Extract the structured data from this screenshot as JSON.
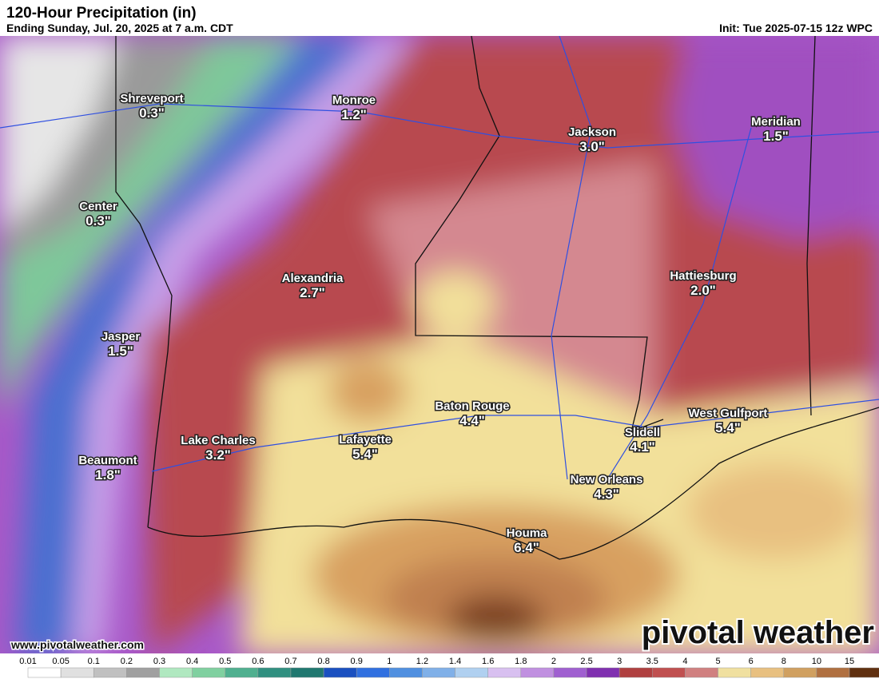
{
  "header": {
    "title": "120-Hour Precipitation (in)",
    "subtitle": "Ending Sunday, Jul. 20, 2025 at 7 a.m. CDT",
    "init": "Init: Tue 2025-07-15 12z WPC"
  },
  "cities": [
    {
      "name": "Shreveport",
      "amount": "0.3\""
    },
    {
      "name": "Monroe",
      "amount": "1.2\""
    },
    {
      "name": "Jackson",
      "amount": "3.0\""
    },
    {
      "name": "Meridian",
      "amount": "1.5\""
    },
    {
      "name": "Center",
      "amount": "0.3\""
    },
    {
      "name": "Alexandria",
      "amount": "2.7\""
    },
    {
      "name": "Hattiesburg",
      "amount": "2.0\""
    },
    {
      "name": "Jasper",
      "amount": "1.5\""
    },
    {
      "name": "Baton Rouge",
      "amount": "4.4\""
    },
    {
      "name": "West Gulfport",
      "amount": "5.4\""
    },
    {
      "name": "Lafayette",
      "amount": "5.4\""
    },
    {
      "name": "Lake Charles",
      "amount": "3.2\""
    },
    {
      "name": "Slidell",
      "amount": "4.1\""
    },
    {
      "name": "Beaumont",
      "amount": "1.8\""
    },
    {
      "name": "New Orleans",
      "amount": "4.3\""
    },
    {
      "name": "Houma",
      "amount": "6.4\""
    }
  ],
  "footer": {
    "website": "www.pivotalweather.com",
    "logo": "pivotal weather"
  },
  "colorbar": {
    "labels": [
      "0.01",
      "0.05",
      "0.1",
      "0.2",
      "0.3",
      "0.4",
      "0.5",
      "0.6",
      "0.7",
      "0.8",
      "0.9",
      "1",
      "1.2",
      "1.4",
      "1.6",
      "1.8",
      "2",
      "2.5",
      "3",
      "3.5",
      "4",
      "5",
      "6",
      "8",
      "10",
      "15"
    ],
    "colors": [
      "#ffffff",
      "#e0e0e0",
      "#c0c0c0",
      "#a0a0a0",
      "#b0e8c0",
      "#80d0a0",
      "#50b090",
      "#309080",
      "#207870",
      "#1a50c0",
      "#3070e0",
      "#5090e0",
      "#80b0e8",
      "#b0d0f0",
      "#d8c0f0",
      "#c090e0",
      "#a060d0",
      "#8030b0",
      "#b04040",
      "#c05050",
      "#d08080",
      "#f0e0a0",
      "#e8c080",
      "#d0a060",
      "#b07040",
      "#603010"
    ]
  }
}
